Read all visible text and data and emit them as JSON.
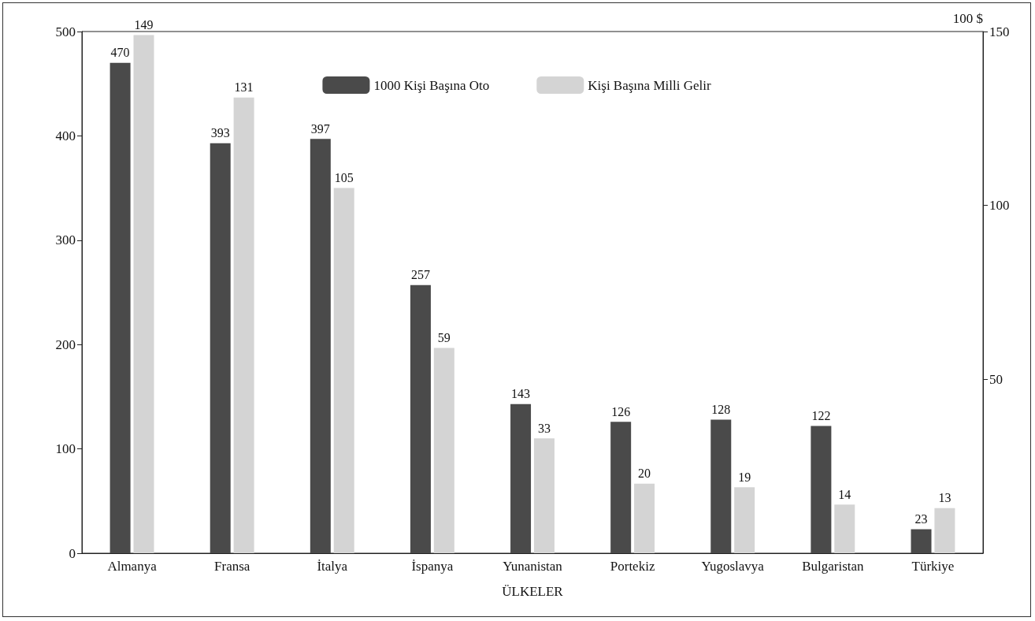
{
  "chart_data": {
    "type": "bar",
    "xlabel": "ÜLKELER",
    "y2label": "100 $",
    "categories": [
      "Almanya",
      "Fransa",
      "İtalya",
      "İspanya",
      "Yunanistan",
      "Portekiz",
      "Yugoslavya",
      "Bulgaristan",
      "Türkiye"
    ],
    "series": [
      {
        "name": "1000 Kişi Başına Oto",
        "color": "#4a4a4a",
        "values": [
          470,
          393,
          397,
          257,
          143,
          126,
          128,
          122,
          23
        ]
      },
      {
        "name": "Kişi Başına Milli Gelir",
        "color": "#d4d4d4",
        "axis": "y2",
        "values": [
          149,
          131,
          105,
          59,
          33,
          20,
          19,
          14,
          13
        ]
      }
    ],
    "ylim": [
      0,
      500
    ],
    "yticks": [
      0,
      100,
      200,
      300,
      400,
      500
    ],
    "y2lim": [
      0,
      150
    ],
    "y2ticks": [
      50,
      100,
      150
    ],
    "data_labels": true,
    "grid": false,
    "legend": "top"
  }
}
